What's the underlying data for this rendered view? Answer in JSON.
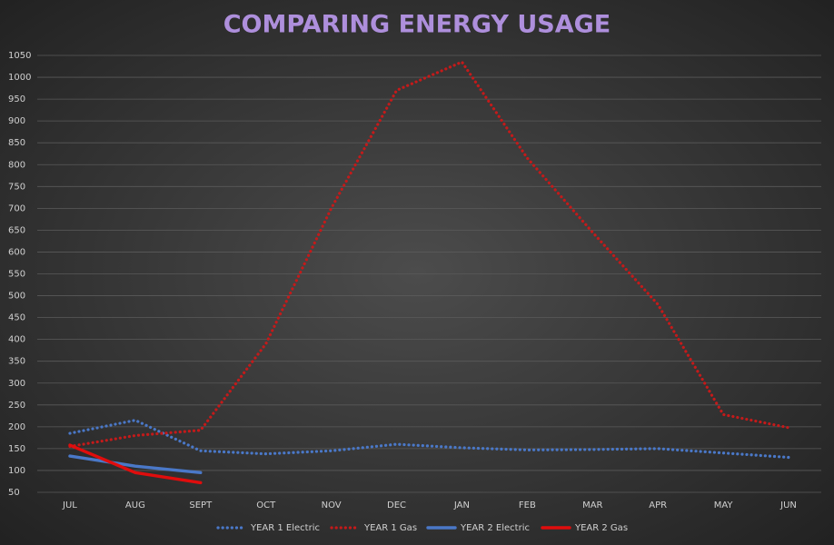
{
  "chart_data": {
    "type": "line",
    "title": "COMPARING ENERGY USAGE",
    "categories": [
      "JUL",
      "AUG",
      "SEPT",
      "OCT",
      "NOV",
      "DEC",
      "JAN",
      "FEB",
      "MAR",
      "APR",
      "MAY",
      "JUN"
    ],
    "series": [
      {
        "name": "YEAR 1 Electric",
        "color": "#4a78c8",
        "style": "dotted",
        "values": [
          185,
          215,
          145,
          138,
          145,
          160,
          152,
          147,
          148,
          150,
          140,
          130
        ]
      },
      {
        "name": "YEAR 1 Gas",
        "color": "#c41a1a",
        "style": "dotted",
        "values": [
          155,
          180,
          192,
          390,
          700,
          970,
          1035,
          815,
          645,
          480,
          228,
          198
        ]
      },
      {
        "name": "YEAR 2 Electric",
        "color": "#4a78c8",
        "style": "solid",
        "values": [
          133,
          110,
          95,
          null,
          null,
          null,
          null,
          null,
          null,
          null,
          null,
          null
        ]
      },
      {
        "name": "YEAR 2 Gas",
        "color": "#e00d0d",
        "style": "solid",
        "values": [
          158,
          95,
          72,
          null,
          null,
          null,
          null,
          null,
          null,
          null,
          null,
          null
        ]
      }
    ],
    "ylim": [
      50,
      1050
    ],
    "yticks": [
      50,
      100,
      150,
      200,
      250,
      300,
      350,
      400,
      450,
      500,
      550,
      600,
      650,
      700,
      750,
      800,
      850,
      900,
      950,
      1000,
      1050
    ],
    "grid": true,
    "legend": "bottom"
  }
}
